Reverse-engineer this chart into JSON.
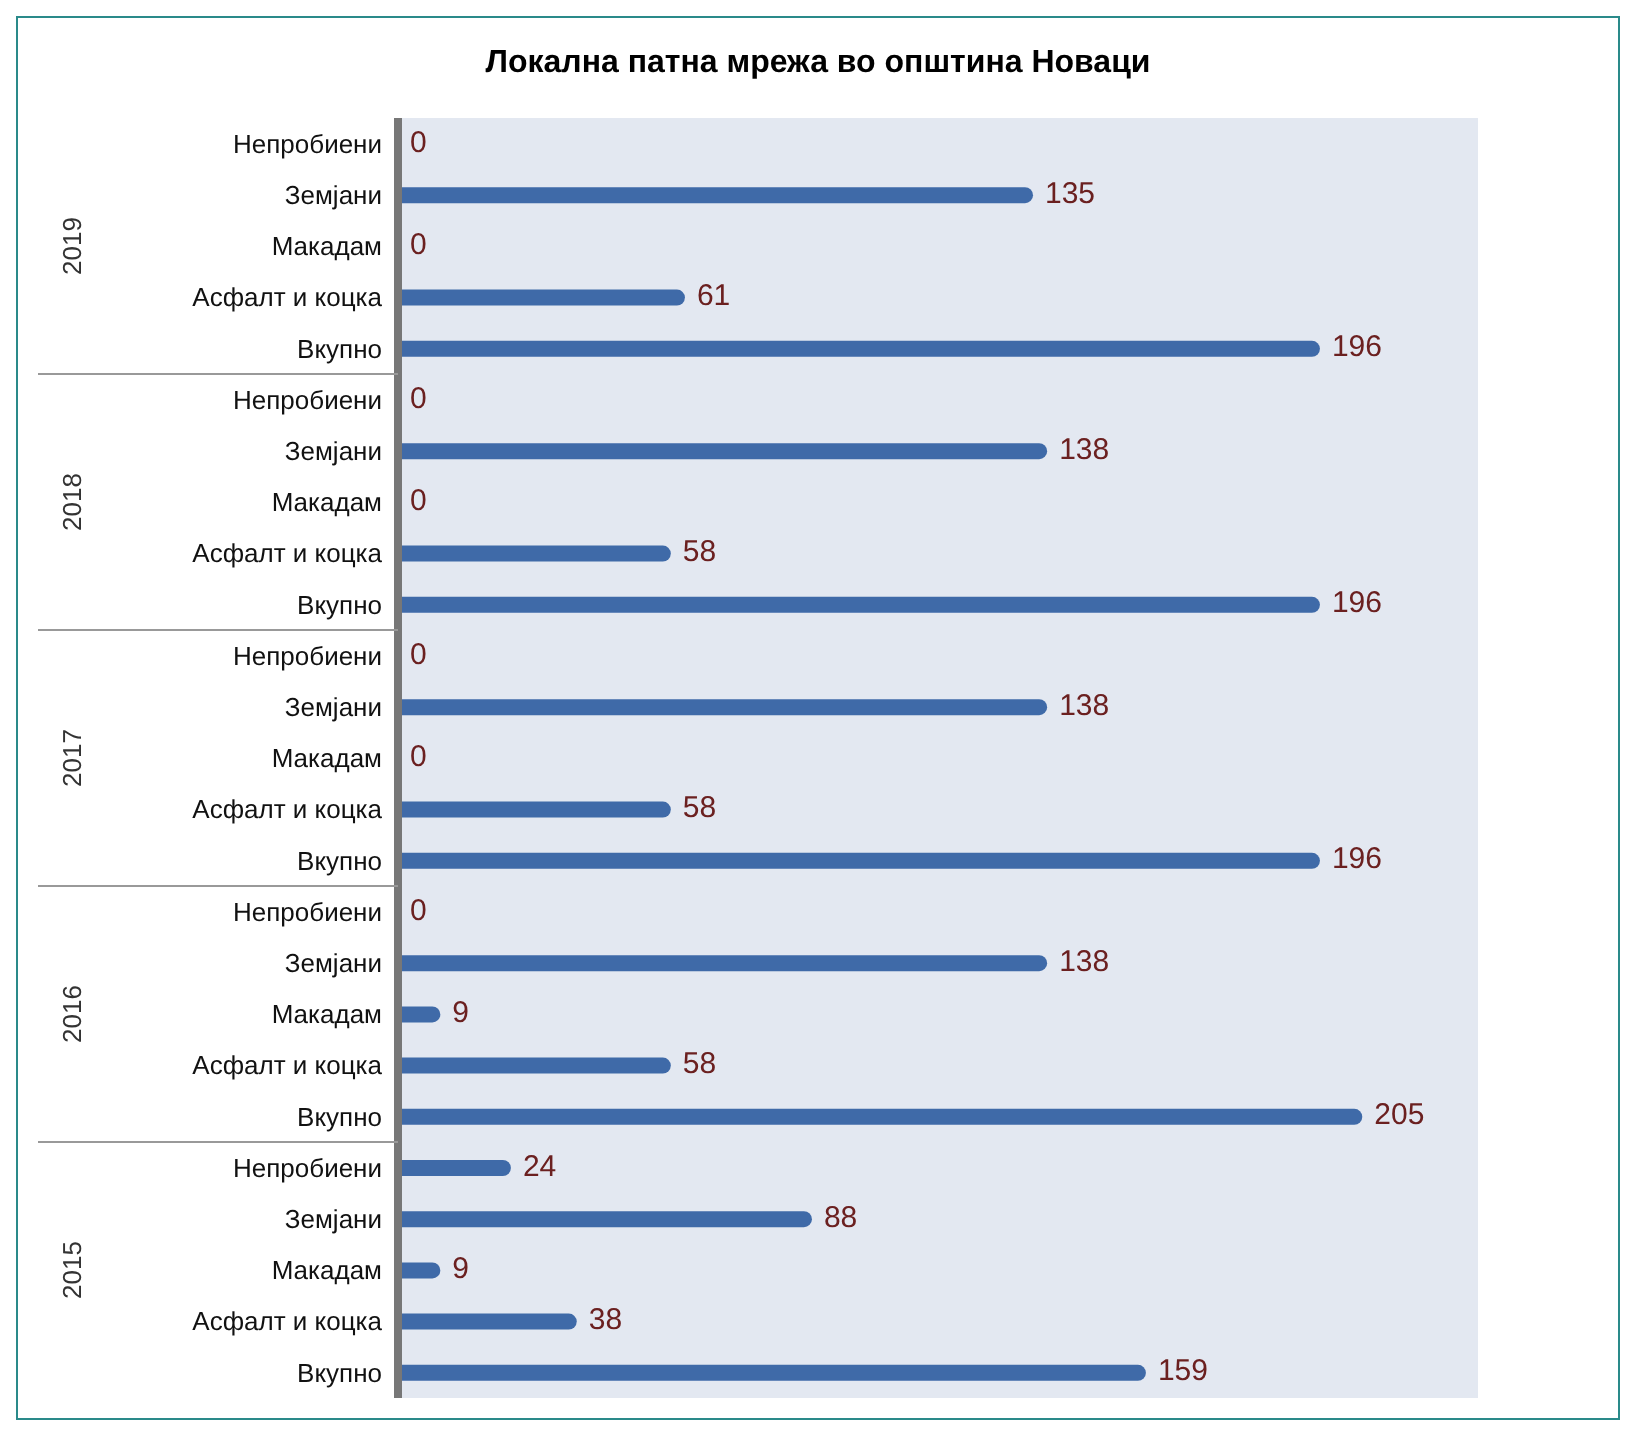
{
  "chart_data": {
    "type": "bar",
    "orientation": "horizontal",
    "title": "Локална патна мрежа во општина Новаци",
    "categories": [
      "Непробиени",
      "Земјани",
      "Макадам",
      "Асфалт и коцка",
      "Вкупно",
      "Непробиени",
      "Земјани",
      "Макадам",
      "Асфалт и коцка",
      "Вкупно",
      "Непробиени",
      "Земјани",
      "Макадам",
      "Асфалт и коцка",
      "Вкупно",
      "Непробиени",
      "Земјани",
      "Макадам",
      "Асфалт и коцка",
      "Вкупно",
      "Непробиени",
      "Земјани",
      "Макадам",
      "Асфалт и коцка",
      "Вкупно"
    ],
    "values": [
      0,
      135,
      0,
      61,
      196,
      0,
      138,
      0,
      58,
      196,
      0,
      138,
      0,
      58,
      196,
      0,
      138,
      9,
      58,
      205,
      24,
      88,
      9,
      38,
      159
    ],
    "color": "#3f6aa8",
    "data_labels": true,
    "annotations": [
      "2019",
      "2018",
      "2017",
      "2016",
      "2015"
    ]
  }
}
